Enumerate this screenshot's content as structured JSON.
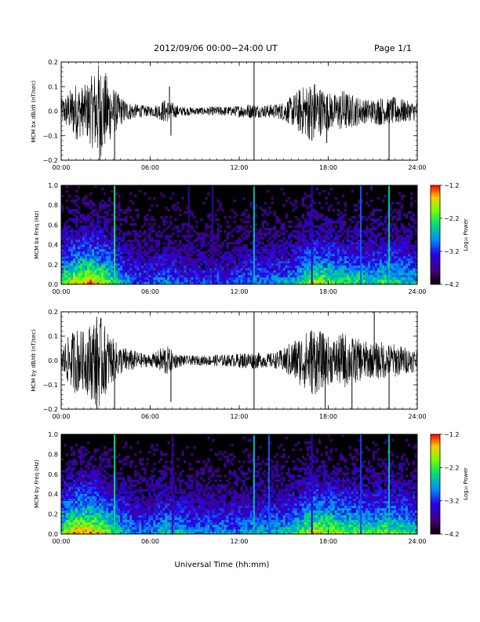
{
  "header": {
    "title": "2012/09/06  00:00−24:00 UT",
    "page": "Page 1/1"
  },
  "x_axis_title": "Universal Time (hh:mm)",
  "chart_data": [
    {
      "type": "line",
      "ylabel": "MCM bx dB/dt (nT/sec)",
      "xlim": [
        0,
        24
      ],
      "ylim": [
        -0.2,
        0.2
      ],
      "xticks": [
        "00:00",
        "06:00",
        "12:00",
        "18:00",
        "24:00"
      ],
      "yticks": [
        "0.2",
        "0.1",
        "0.0",
        "−0.1",
        "−0.2"
      ],
      "envelope": {
        "hours": [
          0,
          0.5,
          1,
          1.5,
          2,
          2.5,
          3,
          3.5,
          4,
          4.5,
          5,
          5.5,
          6,
          6.5,
          7,
          7.5,
          8,
          8.5,
          9,
          9.5,
          10,
          10.5,
          11,
          11.5,
          12,
          12.5,
          13,
          13.5,
          14,
          14.5,
          15,
          15.5,
          16,
          16.5,
          17,
          17.5,
          18,
          18.5,
          19,
          19.5,
          20,
          20.5,
          21,
          21.5,
          22,
          22.5,
          23,
          23.5,
          24
        ],
        "amplitude": [
          0.05,
          0.08,
          0.12,
          0.1,
          0.14,
          0.2,
          0.16,
          0.1,
          0.06,
          0.04,
          0.03,
          0.025,
          0.02,
          0.03,
          0.05,
          0.035,
          0.02,
          0.018,
          0.016,
          0.016,
          0.018,
          0.02,
          0.02,
          0.02,
          0.025,
          0.03,
          0.03,
          0.025,
          0.028,
          0.03,
          0.04,
          0.06,
          0.09,
          0.11,
          0.13,
          0.1,
          0.08,
          0.07,
          0.09,
          0.07,
          0.06,
          0.05,
          0.05,
          0.06,
          0.05,
          0.06,
          0.05,
          0.04,
          0.04
        ]
      },
      "spikes": [
        {
          "hour": 2.6,
          "value": -0.2
        },
        {
          "hour": 3.6,
          "value": -0.2
        },
        {
          "hour": 7.3,
          "value": 0.1
        },
        {
          "hour": 7.4,
          "value": -0.1
        },
        {
          "hour": 13.0,
          "value": 0.2
        },
        {
          "hour": 13.0,
          "value": -0.2
        },
        {
          "hour": 16.9,
          "value": -0.12
        },
        {
          "hour": 17.9,
          "value": -0.13
        },
        {
          "hour": 22.1,
          "value": -0.2
        }
      ]
    },
    {
      "type": "heatmap",
      "ylabel": "MCM bx Freq (Hz)",
      "xlim": [
        0,
        24
      ],
      "ylim": [
        0,
        1.0
      ],
      "xticks": [
        "00:00",
        "06:00",
        "12:00",
        "18:00",
        "24:00"
      ],
      "yticks": [
        "1.0",
        "0.8",
        "0.6",
        "0.4",
        "0.2",
        "0.0"
      ],
      "colorbar": {
        "label": "Log₁₀ Power",
        "range": [
          -4.2,
          -1.2
        ],
        "ticks": [
          "−1.2",
          "−2.2",
          "−3.2",
          "−4.2"
        ]
      },
      "activity": {
        "hours": [
          0,
          1,
          2,
          3,
          4,
          5,
          6,
          7,
          8,
          9,
          10,
          11,
          12,
          13,
          14,
          15,
          16,
          17,
          18,
          19,
          20,
          21,
          22,
          23,
          24
        ],
        "level": [
          0.5,
          0.65,
          0.7,
          0.6,
          0.4,
          0.3,
          0.3,
          0.35,
          0.3,
          0.28,
          0.28,
          0.28,
          0.3,
          0.35,
          0.35,
          0.35,
          0.45,
          0.6,
          0.55,
          0.5,
          0.5,
          0.45,
          0.5,
          0.45,
          0.4
        ]
      },
      "vertical_lines": [
        {
          "hour": 3.6,
          "log_power": -2.3
        },
        {
          "hour": 13.0,
          "log_power": -2.6
        },
        {
          "hour": 20.2,
          "log_power": -3.0
        },
        {
          "hour": 22.1,
          "log_power": -2.5
        },
        {
          "hour": 8.6,
          "log_power": -3.6
        },
        {
          "hour": 10.2,
          "log_power": -3.6
        },
        {
          "hour": 16.9,
          "log_power": -3.4
        }
      ]
    },
    {
      "type": "line",
      "ylabel": "MCM by dB/dt (nT/sec)",
      "xlim": [
        0,
        24
      ],
      "ylim": [
        -0.2,
        0.2
      ],
      "xticks": [
        "00:00",
        "06:00",
        "12:00",
        "18:00",
        "24:00"
      ],
      "yticks": [
        "0.2",
        "0.1",
        "0.0",
        "−0.1",
        "−0.2"
      ],
      "envelope": {
        "hours": [
          0,
          0.5,
          1,
          1.5,
          2,
          2.5,
          3,
          3.5,
          4,
          4.5,
          5,
          5.5,
          6,
          6.5,
          7,
          7.5,
          8,
          8.5,
          9,
          9.5,
          10,
          10.5,
          11,
          11.5,
          12,
          12.5,
          13,
          13.5,
          14,
          14.5,
          15,
          15.5,
          16,
          16.5,
          17,
          17.5,
          18,
          18.5,
          19,
          19.5,
          20,
          20.5,
          21,
          21.5,
          22,
          22.5,
          23,
          23.5,
          24
        ],
        "amplitude": [
          0.06,
          0.1,
          0.14,
          0.12,
          0.16,
          0.2,
          0.14,
          0.09,
          0.06,
          0.05,
          0.04,
          0.03,
          0.025,
          0.04,
          0.07,
          0.04,
          0.025,
          0.02,
          0.02,
          0.02,
          0.022,
          0.025,
          0.025,
          0.025,
          0.03,
          0.035,
          0.035,
          0.03,
          0.03,
          0.035,
          0.05,
          0.08,
          0.1,
          0.12,
          0.15,
          0.12,
          0.1,
          0.09,
          0.12,
          0.1,
          0.09,
          0.08,
          0.07,
          0.08,
          0.07,
          0.07,
          0.06,
          0.05,
          0.05
        ]
      },
      "spikes": [
        {
          "hour": 2.4,
          "value": -0.2
        },
        {
          "hour": 3.6,
          "value": -0.2
        },
        {
          "hour": 7.4,
          "value": -0.17
        },
        {
          "hour": 13.0,
          "value": 0.2
        },
        {
          "hour": 13.0,
          "value": -0.2
        },
        {
          "hour": 17.8,
          "value": -0.2
        },
        {
          "hour": 19.6,
          "value": -0.2
        },
        {
          "hour": 21.1,
          "value": 0.2
        },
        {
          "hour": 22.1,
          "value": -0.2
        }
      ]
    },
    {
      "type": "heatmap",
      "ylabel": "MCM by Freq (Hz)",
      "xlim": [
        0,
        24
      ],
      "ylim": [
        0,
        1.0
      ],
      "xticks": [
        "00:00",
        "06:00",
        "12:00",
        "18:00",
        "24:00"
      ],
      "yticks": [
        "1.0",
        "0.8",
        "0.6",
        "0.4",
        "0.2",
        "0.0"
      ],
      "colorbar": {
        "label": "Log₁₀ Power",
        "range": [
          -4.2,
          -1.2
        ],
        "ticks": [
          "−1.2",
          "−2.2",
          "−3.2",
          "−4.2"
        ]
      },
      "activity": {
        "hours": [
          0,
          1,
          2,
          3,
          4,
          5,
          6,
          7,
          8,
          9,
          10,
          11,
          12,
          13,
          14,
          15,
          16,
          17,
          18,
          19,
          20,
          21,
          22,
          23,
          24
        ],
        "level": [
          0.55,
          0.7,
          0.7,
          0.6,
          0.45,
          0.35,
          0.35,
          0.45,
          0.4,
          0.35,
          0.35,
          0.35,
          0.35,
          0.4,
          0.4,
          0.4,
          0.5,
          0.65,
          0.6,
          0.55,
          0.55,
          0.5,
          0.55,
          0.5,
          0.45
        ]
      },
      "vertical_lines": [
        {
          "hour": 3.6,
          "log_power": -2.4
        },
        {
          "hour": 13.0,
          "log_power": -2.6
        },
        {
          "hour": 14.0,
          "log_power": -3.0
        },
        {
          "hour": 20.2,
          "log_power": -3.1
        },
        {
          "hour": 22.1,
          "log_power": -2.6
        },
        {
          "hour": 7.5,
          "log_power": -3.6
        },
        {
          "hour": 16.9,
          "log_power": -3.4
        }
      ]
    }
  ]
}
